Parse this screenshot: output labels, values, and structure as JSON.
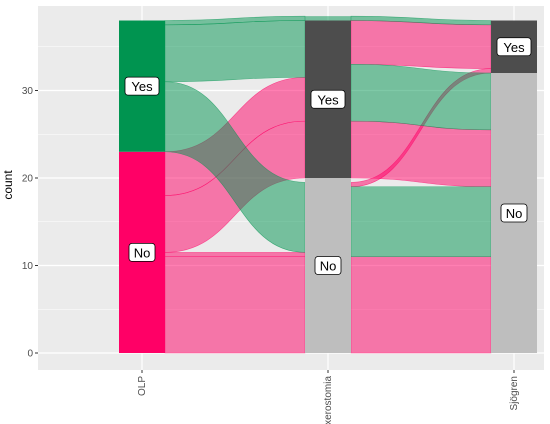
{
  "chart_data": {
    "type": "alluvial",
    "ylabel": "count",
    "axes": [
      "OLP",
      "xerostomia",
      "Sjögren"
    ],
    "y_ticks": [
      0,
      10,
      20,
      30
    ],
    "ylim": [
      0,
      38
    ],
    "strata": [
      {
        "axis": "OLP",
        "label": "No",
        "count": 23,
        "color": "#ff0066"
      },
      {
        "axis": "OLP",
        "label": "Yes",
        "count": 15,
        "color": "#009450"
      },
      {
        "axis": "xerostomia",
        "label": "No",
        "count": 20,
        "color": "#bebebe"
      },
      {
        "axis": "xerostomia",
        "label": "Yes",
        "count": 18,
        "color": "#4d4d4d"
      },
      {
        "axis": "Sjögren",
        "label": "No",
        "count": 32,
        "color": "#bebebe"
      },
      {
        "axis": "Sjögren",
        "label": "Yes",
        "count": 6,
        "color": "#4d4d4d"
      }
    ],
    "flows": [
      {
        "OLP": "No",
        "xerostomia": "No",
        "Sjögren": "No",
        "count": 11
      },
      {
        "OLP": "No",
        "xerostomia": "No",
        "Sjögren": "Yes",
        "count": 0.5
      },
      {
        "OLP": "No",
        "xerostomia": "Yes",
        "Sjögren": "No",
        "count": 6.5
      },
      {
        "OLP": "No",
        "xerostomia": "Yes",
        "Sjögren": "Yes",
        "count": 5
      },
      {
        "OLP": "Yes",
        "xerostomia": "No",
        "Sjögren": "No",
        "count": 8
      },
      {
        "OLP": "Yes",
        "xerostomia": "Yes",
        "Sjögren": "No",
        "count": 6.5
      },
      {
        "OLP": "Yes",
        "xerostomia": "Yes",
        "Sjögren": "Yes",
        "count": 0.5
      }
    ],
    "flow_fill_by": "OLP",
    "flow_colors": {
      "No": "#ff0066",
      "Yes": "#009450"
    },
    "flow_opacity": 0.5,
    "panel_background": "#ebebeb",
    "grid_color": "#ffffff",
    "grid": true,
    "legend": "none"
  }
}
